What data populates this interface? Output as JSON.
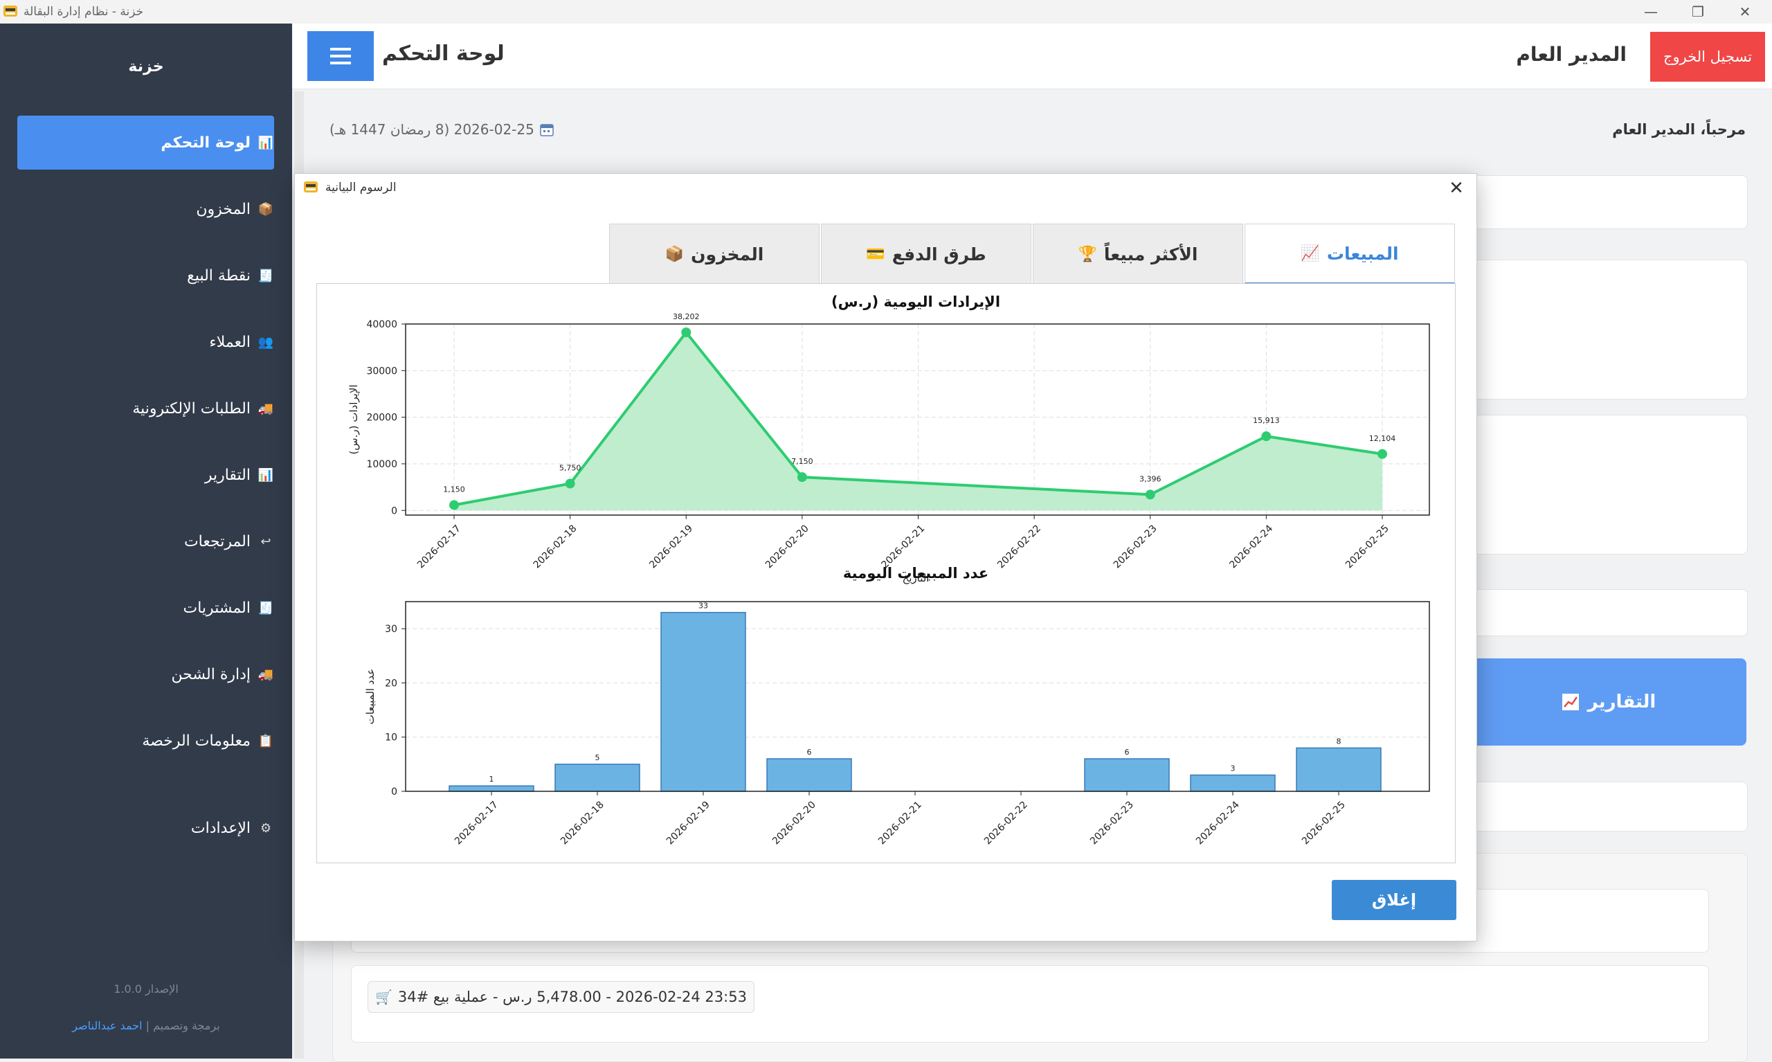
{
  "window": {
    "title": "خزنة - نظام إدارة البقالة",
    "controls": [
      "minimize-icon",
      "restore-icon",
      "close-icon"
    ]
  },
  "sidebar": {
    "brand": "خزنة",
    "items": [
      {
        "label": "لوحة التحكم",
        "icon": "chart-icon",
        "active": true
      },
      {
        "label": "المخزون",
        "icon": "box-icon"
      },
      {
        "label": "نقطة البيع",
        "icon": "register-icon"
      },
      {
        "label": "العملاء",
        "icon": "users-icon"
      },
      {
        "label": "الطلبات الإلكترونية",
        "icon": "truck-icon"
      },
      {
        "label": "التقارير",
        "icon": "chart-icon"
      },
      {
        "label": "المرتجعات",
        "icon": "return-icon"
      },
      {
        "label": "المشتريات",
        "icon": "register-icon"
      },
      {
        "label": "إدارة الشحن",
        "icon": "truck-icon"
      },
      {
        "label": "معلومات الرخصة",
        "icon": "clipboard-icon"
      },
      {
        "label": "الإعدادات",
        "icon": "gear-icon"
      }
    ],
    "version": "الإصدار 1.0.0",
    "credit_prefix": "برمجة وتصميم |",
    "credit_author": "احمد عبدالناصر"
  },
  "header": {
    "title": "لوحة التحكم",
    "user": "المدير العام",
    "logout": "تسجيل الخروج"
  },
  "content": {
    "date": "2026-02-25 (8 رمضان 1447 هـ)",
    "welcome": "مرحباً، المدير العام",
    "reports_button": "التقارير",
    "activity": "23:53 2026-02-24 - 5,478.00 ر.س - عملية بيع #34"
  },
  "dialog": {
    "title": "الرسوم البيانية",
    "tabs": [
      {
        "label": "المبيعات",
        "icon": "chart-icon",
        "active": true
      },
      {
        "label": "الأكثر مبيعاً",
        "icon": "trophy-icon"
      },
      {
        "label": "طرق الدفع",
        "icon": "card-icon"
      },
      {
        "label": "المخزون",
        "icon": "box-icon"
      }
    ],
    "close": "إغلاق"
  },
  "chart_data": [
    {
      "type": "line",
      "title": "الإيرادات اليومية (ر.س)",
      "ylabel": "الإيرادات (ر.س)",
      "xlabel": "التاريخ",
      "x": [
        "2026-02-17",
        "2026-02-18",
        "2026-02-19",
        "2026-02-20",
        "2026-02-21",
        "2026-02-22",
        "2026-02-23",
        "2026-02-24",
        "2026-02-25"
      ],
      "points": [
        {
          "x": "2026-02-17",
          "y": 1150,
          "label": "1,150"
        },
        {
          "x": "2026-02-18",
          "y": 5750,
          "label": "5,750"
        },
        {
          "x": "2026-02-19",
          "y": 38202,
          "label": "38,202"
        },
        {
          "x": "2026-02-20",
          "y": 7150,
          "label": "7,150"
        },
        {
          "x": "2026-02-23",
          "y": 3396,
          "label": "3,396"
        },
        {
          "x": "2026-02-24",
          "y": 15913,
          "label": "15,913"
        },
        {
          "x": "2026-02-25",
          "y": 12104,
          "label": "12,104"
        }
      ],
      "yticks": [
        0,
        10000,
        20000,
        30000,
        40000
      ],
      "ylim": [
        -1000,
        40000
      ],
      "color": "#2ecc71",
      "fill_color": "#b8ebc9",
      "grid": true
    },
    {
      "type": "bar",
      "title": "عدد المبيعات اليومية",
      "ylabel": "عدد المبيعات",
      "categories": [
        "2026-02-17",
        "2026-02-18",
        "2026-02-19",
        "2026-02-20",
        "2026-02-21",
        "2026-02-22",
        "2026-02-23",
        "2026-02-24",
        "2026-02-25"
      ],
      "values": [
        1,
        5,
        33,
        6,
        0,
        0,
        6,
        3,
        8
      ],
      "yticks": [
        0,
        10,
        20,
        30
      ],
      "ylim": [
        0,
        35
      ],
      "color": "#6bb3e3",
      "edge_color": "#3a7ab8",
      "grid": true
    }
  ],
  "colors": {
    "sidebar_bg": "#323b4a",
    "accent": "#4a8ff0",
    "logout": "#f04646",
    "dialog_button": "#3a8ad6"
  }
}
